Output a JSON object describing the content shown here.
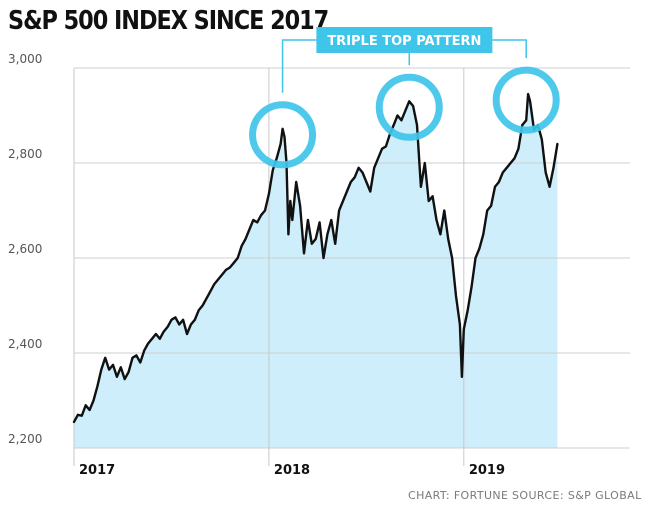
{
  "chart_data": {
    "type": "area",
    "title": "S&P 500 INDEX SINCE 2017",
    "xlabel": "",
    "ylabel": "",
    "x_ticks": [
      "2017",
      "2018",
      "2019"
    ],
    "y_ticks": [
      "3,000",
      "2,800",
      "2,600",
      "2,400",
      "2,200"
    ],
    "xlim": [
      2017.0,
      2019.75
    ],
    "ylim": [
      2200,
      3000
    ],
    "grid": true,
    "fill_color": "#cdeefa",
    "line_color": "#111111",
    "highlight_color": "#3fc4ea",
    "annotation": {
      "label": "TRIPLE TOP PATTERN",
      "peaks": [
        {
          "x": 2018.07,
          "y": 2872
        },
        {
          "x": 2018.72,
          "y": 2930
        },
        {
          "x": 2019.32,
          "y": 2945
        }
      ]
    },
    "series": [
      {
        "x": [
          2017.0,
          2017.02,
          2017.04,
          2017.06,
          2017.08,
          2017.1,
          2017.12,
          2017.14,
          2017.16,
          2017.18,
          2017.2,
          2017.22,
          2017.24,
          2017.26,
          2017.28,
          2017.3,
          2017.32,
          2017.34,
          2017.36,
          2017.38,
          2017.4,
          2017.42,
          2017.44,
          2017.46,
          2017.48,
          2017.5,
          2017.52,
          2017.54,
          2017.56,
          2017.58,
          2017.6,
          2017.62,
          2017.64,
          2017.66,
          2017.68,
          2017.7,
          2017.72,
          2017.74,
          2017.76,
          2017.78,
          2017.8,
          2017.82,
          2017.84,
          2017.86,
          2017.88,
          2017.9,
          2017.92,
          2017.94,
          2017.96,
          2017.98,
          2018.0,
          2018.02,
          2018.04,
          2018.06,
          2018.07,
          2018.08,
          2018.09,
          2018.1,
          2018.11,
          2018.12,
          2018.14,
          2018.16,
          2018.18,
          2018.2,
          2018.22,
          2018.24,
          2018.26,
          2018.28,
          2018.3,
          2018.32,
          2018.34,
          2018.36,
          2018.38,
          2018.4,
          2018.42,
          2018.44,
          2018.46,
          2018.48,
          2018.5,
          2018.52,
          2018.54,
          2018.56,
          2018.58,
          2018.6,
          2018.62,
          2018.64,
          2018.66,
          2018.68,
          2018.7,
          2018.72,
          2018.74,
          2018.76,
          2018.78,
          2018.8,
          2018.82,
          2018.84,
          2018.86,
          2018.88,
          2018.9,
          2018.92,
          2018.94,
          2018.96,
          2018.98,
          2018.99,
          2019.0,
          2019.02,
          2019.04,
          2019.06,
          2019.08,
          2019.1,
          2019.12,
          2019.14,
          2019.16,
          2019.18,
          2019.2,
          2019.22,
          2019.24,
          2019.26,
          2019.28,
          2019.3,
          2019.32,
          2019.33,
          2019.34,
          2019.36,
          2019.38,
          2019.4,
          2019.42,
          2019.44,
          2019.46,
          2019.48
        ],
        "values": [
          2255,
          2270,
          2268,
          2290,
          2280,
          2300,
          2330,
          2365,
          2390,
          2365,
          2375,
          2350,
          2370,
          2345,
          2360,
          2390,
          2395,
          2380,
          2405,
          2420,
          2430,
          2440,
          2430,
          2445,
          2455,
          2470,
          2475,
          2460,
          2470,
          2440,
          2460,
          2470,
          2490,
          2500,
          2515,
          2530,
          2545,
          2555,
          2565,
          2575,
          2580,
          2590,
          2600,
          2625,
          2640,
          2660,
          2680,
          2675,
          2690,
          2700,
          2735,
          2785,
          2810,
          2840,
          2872,
          2855,
          2800,
          2650,
          2720,
          2680,
          2760,
          2710,
          2610,
          2680,
          2630,
          2640,
          2675,
          2600,
          2650,
          2680,
          2630,
          2700,
          2720,
          2740,
          2760,
          2770,
          2790,
          2780,
          2760,
          2740,
          2790,
          2810,
          2830,
          2835,
          2860,
          2880,
          2900,
          2890,
          2910,
          2930,
          2920,
          2880,
          2750,
          2800,
          2720,
          2730,
          2680,
          2650,
          2700,
          2640,
          2600,
          2520,
          2460,
          2350,
          2450,
          2490,
          2540,
          2600,
          2620,
          2650,
          2700,
          2710,
          2750,
          2760,
          2780,
          2790,
          2800,
          2810,
          2830,
          2880,
          2890,
          2945,
          2930,
          2870,
          2880,
          2850,
          2780,
          2750,
          2790,
          2840
        ]
      }
    ]
  },
  "footer": {
    "credit": "CHART: FORTUNE",
    "source": "SOURCE: S&P GLOBAL"
  }
}
